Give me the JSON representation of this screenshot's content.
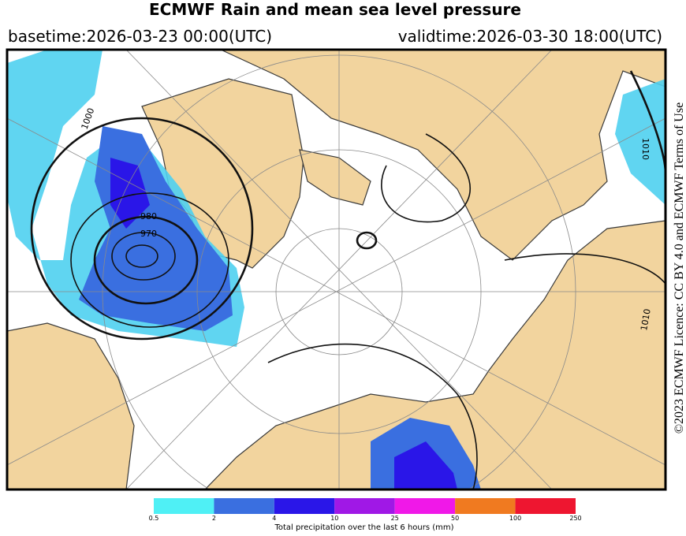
{
  "header": {
    "title": "ECMWF Rain and mean sea level pressure",
    "basetime": "basetime:2026-03-23 00:00(UTC)",
    "validtime": "validtime:2026-03-30 18:00(UTC)"
  },
  "licence": "©2023 ECMWF Licence: CC BY 4.0 and ECMWF Terms of Use",
  "map": {
    "isobar_labels": [
      "1000",
      "980",
      "970",
      "1010",
      "1010"
    ]
  },
  "colorbar": {
    "ticks": [
      0.5,
      2,
      4,
      10,
      25,
      50,
      100,
      250
    ],
    "colors": [
      "#4ff0f5",
      "#3a6fe0",
      "#2a16e8",
      "#a018e6",
      "#f018e8",
      "#f07a20",
      "#ee1630"
    ],
    "label": "Total precipitation over the last 6 hours (mm)"
  }
}
